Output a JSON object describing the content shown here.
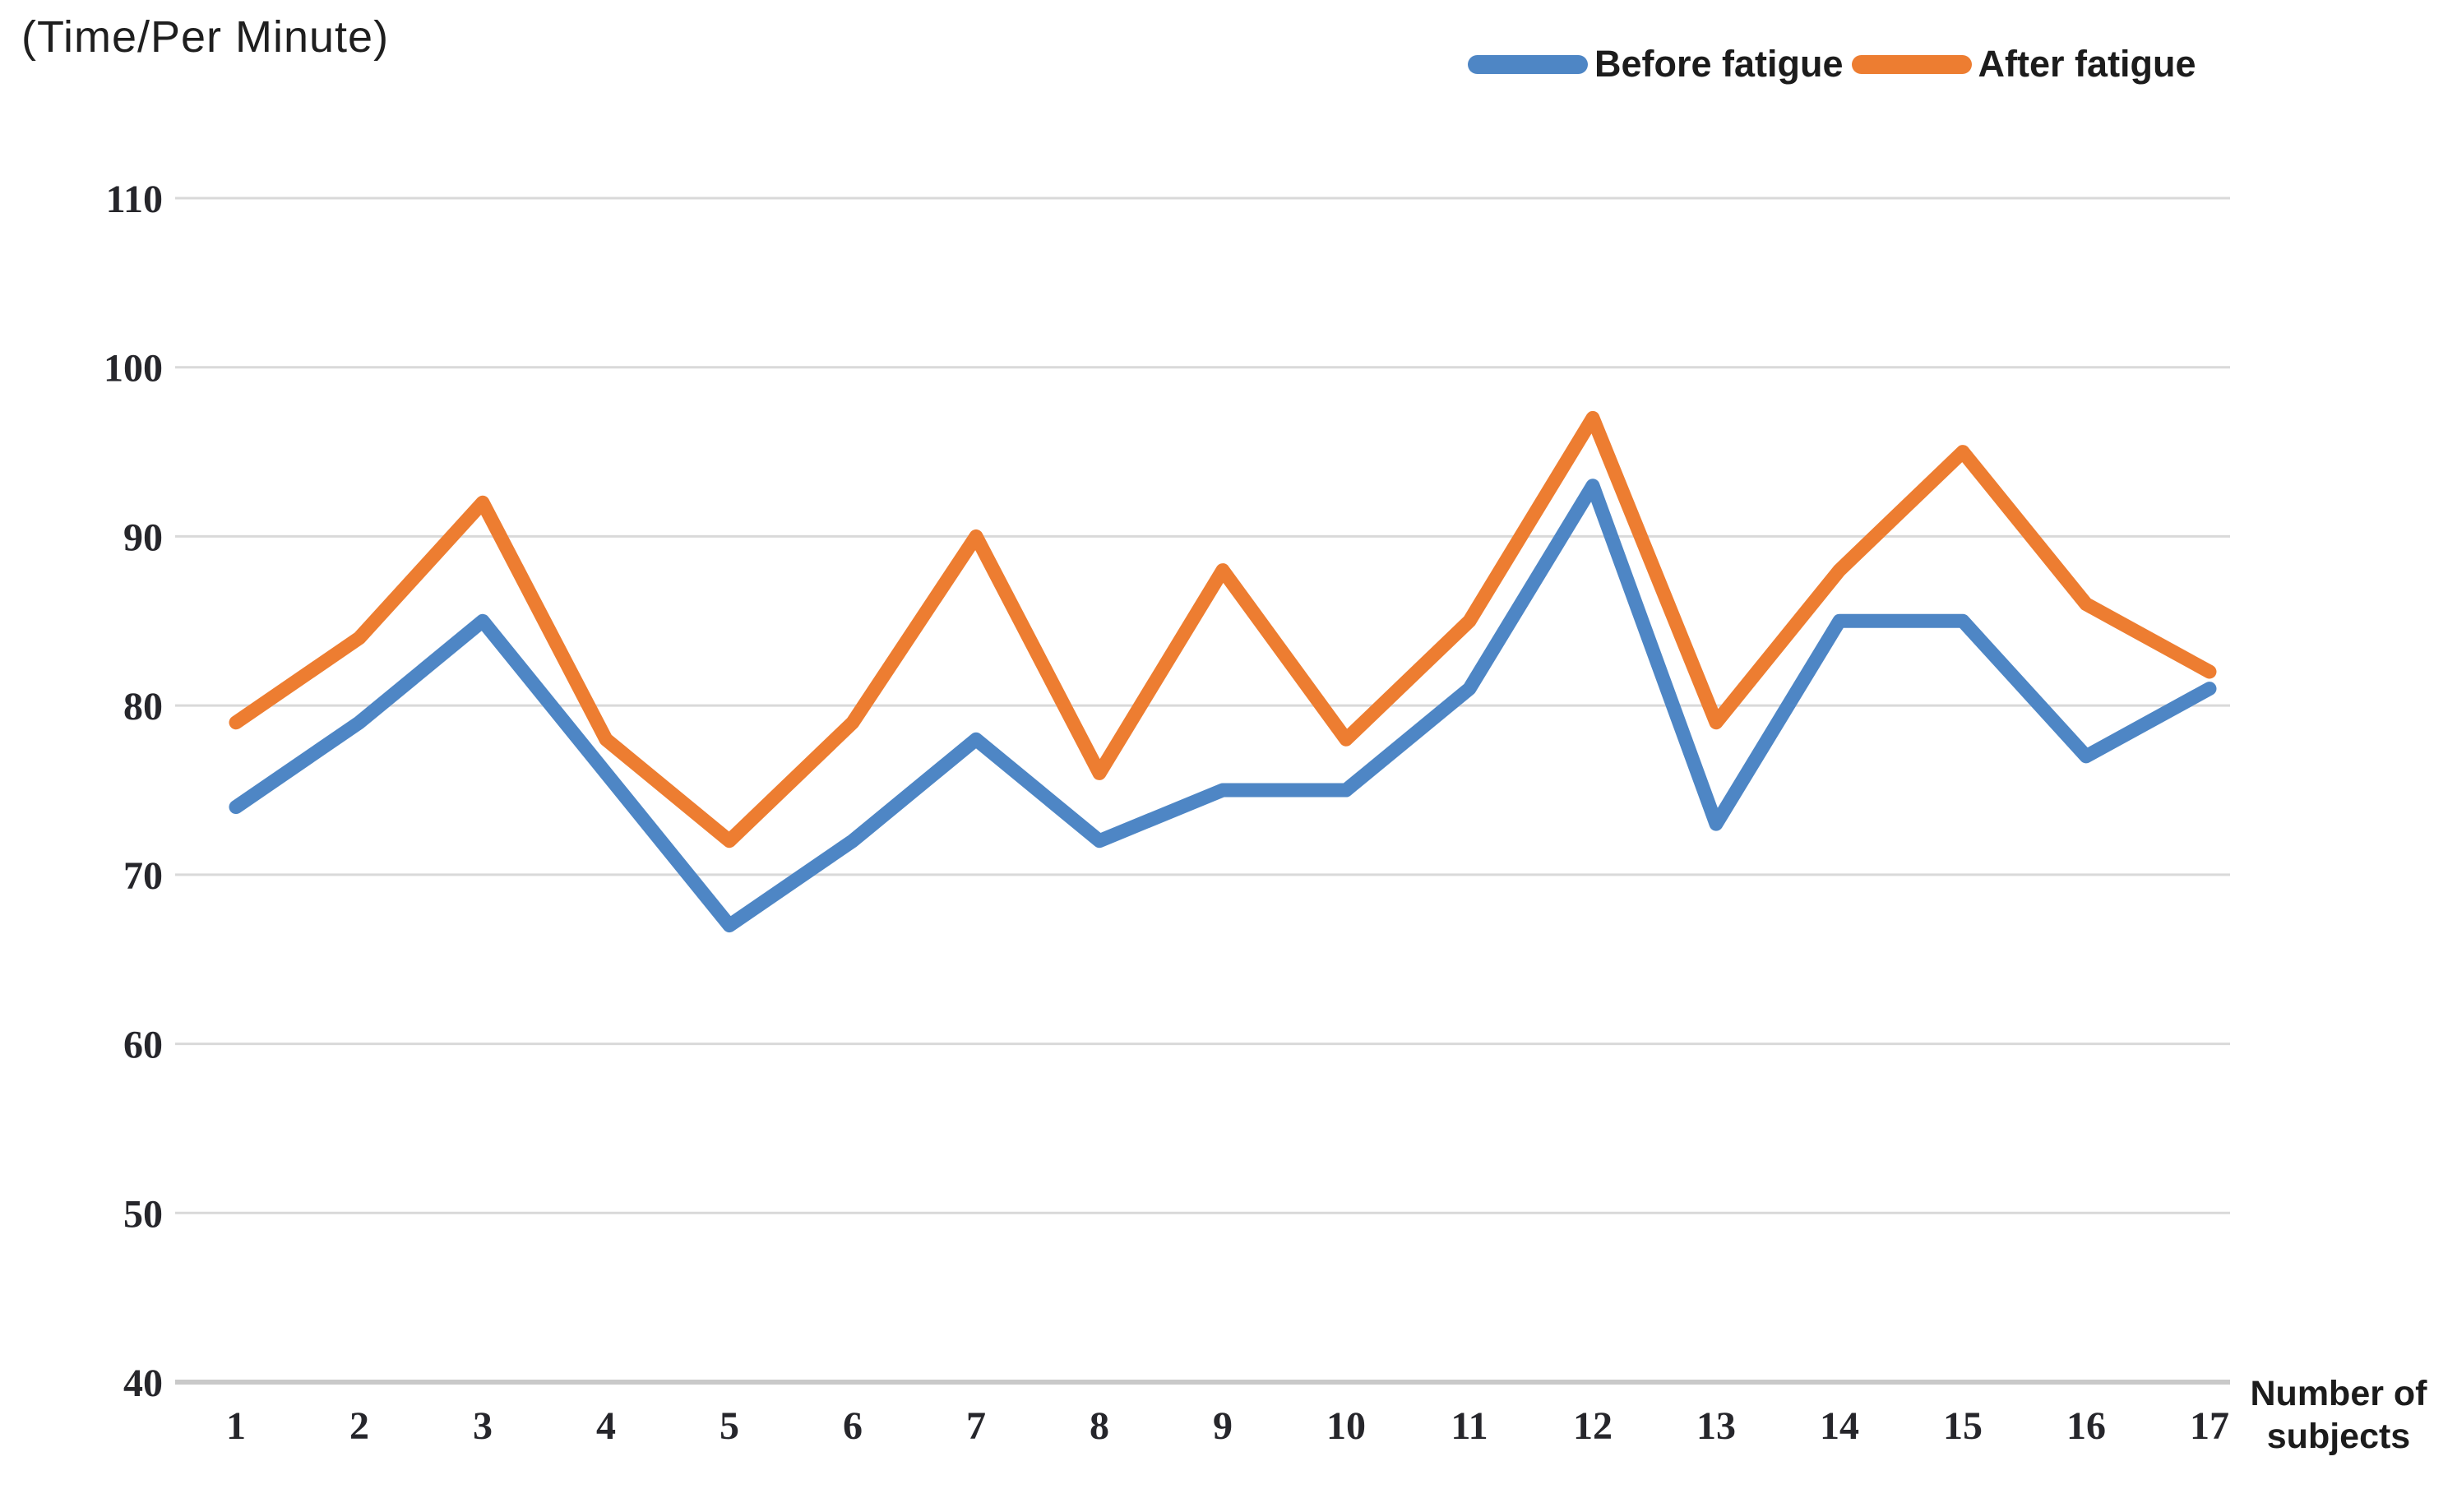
{
  "title": "(Time/Per Minute)",
  "x_axis_label_lines": [
    "Number of",
    "subjects"
  ],
  "chart_data": {
    "type": "line",
    "title": "(Time/Per Minute)",
    "xlabel": "Number of subjects",
    "ylabel": "",
    "x": [
      1,
      2,
      3,
      4,
      5,
      6,
      7,
      8,
      9,
      10,
      11,
      12,
      13,
      14,
      15,
      16,
      17
    ],
    "ylim": [
      40,
      110
    ],
    "yticks": [
      40,
      50,
      60,
      70,
      80,
      90,
      100,
      110
    ],
    "grid": true,
    "legend_position": "top-right",
    "gridline_color": "#D9D9D9",
    "bottom_axis_color": "#C9C9C9",
    "tick_text_color": "#26262B",
    "series": [
      {
        "name": "Before fatigue",
        "color": "#4E86C5",
        "values": [
          74,
          79,
          85,
          76,
          67,
          72,
          78,
          72,
          75,
          75,
          81,
          93,
          73,
          85,
          85,
          77,
          81
        ]
      },
      {
        "name": "After fatigue",
        "color": "#ED7D31",
        "values": [
          79,
          84,
          92,
          78,
          72,
          79,
          90,
          76,
          88,
          78,
          85,
          97,
          79,
          88,
          95,
          86,
          82
        ]
      }
    ]
  }
}
